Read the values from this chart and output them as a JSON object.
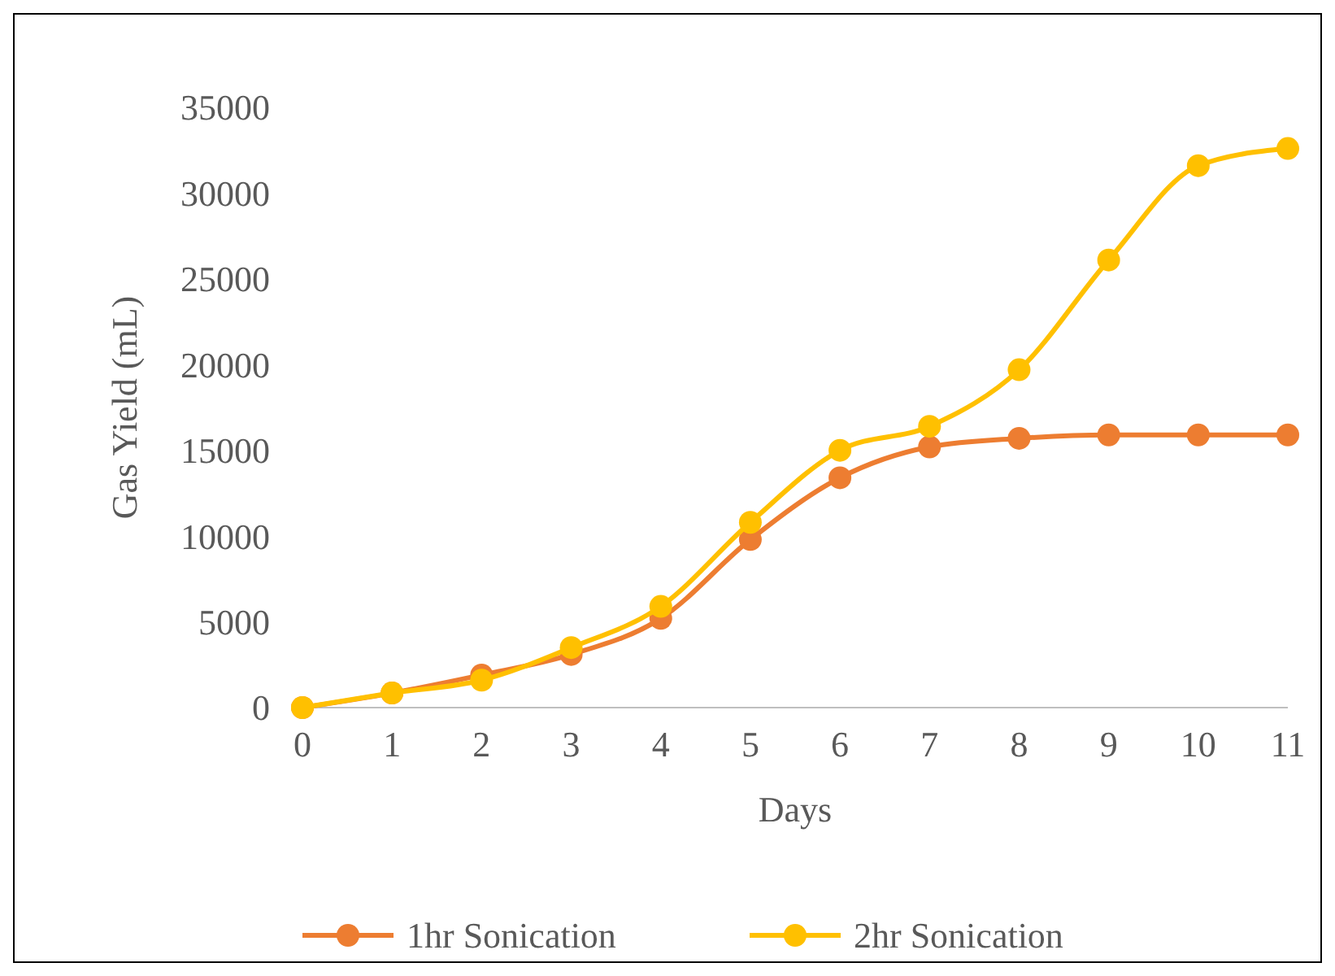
{
  "chart_data": {
    "type": "line",
    "xlabel": "Days",
    "ylabel": "Gas Yield (mL)",
    "x": [
      0,
      1,
      2,
      3,
      4,
      5,
      6,
      7,
      8,
      9,
      10,
      11
    ],
    "xlim": [
      0,
      11
    ],
    "xticks": [
      0,
      1,
      2,
      3,
      4,
      5,
      6,
      7,
      8,
      9,
      10,
      11
    ],
    "ylim": [
      0,
      35000
    ],
    "yticks": [
      0,
      5000,
      10000,
      15000,
      20000,
      25000,
      30000,
      35000
    ],
    "grid": false,
    "legend": "bottom",
    "marker": "circle",
    "line_style": "solid",
    "series": [
      {
        "name": "1hr Sonication",
        "color": "#ed7d31",
        "values": [
          0,
          850,
          1900,
          3100,
          5200,
          9800,
          13400,
          15200,
          15700,
          15900,
          15900,
          15900
        ]
      },
      {
        "name": "2hr Sonication",
        "color": "#ffc000",
        "values": [
          0,
          850,
          1600,
          3500,
          5900,
          10800,
          15000,
          16400,
          19700,
          26100,
          31600,
          32600
        ]
      }
    ]
  }
}
